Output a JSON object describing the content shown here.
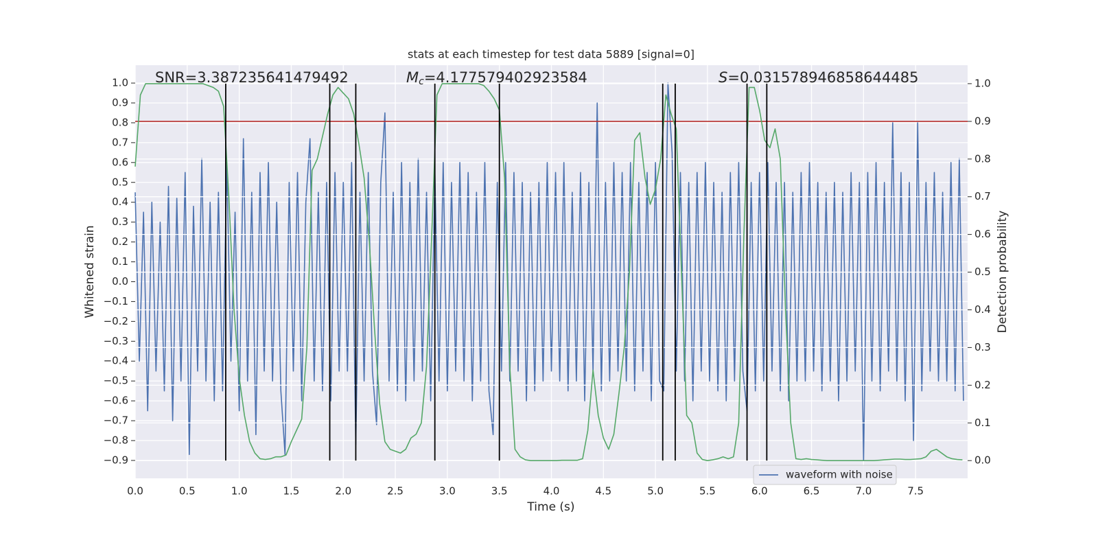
{
  "chart_data": {
    "type": "line",
    "title": "stats at each timestep for test data 5889 [signal=0]",
    "xlabel": "Time (s)",
    "ylabel": "Whitened strain",
    "y2label": "Detection probability",
    "xlim": [
      0,
      8.0
    ],
    "ylim": [
      -0.99,
      1.09
    ],
    "y2lim": [
      -0.047,
      1.049
    ],
    "xticks": [
      {
        "value": 0,
        "label": "0.0"
      },
      {
        "value": 0.5,
        "label": "0.5"
      },
      {
        "value": 1,
        "label": "1.0"
      },
      {
        "value": 1.5,
        "label": "1.5"
      },
      {
        "value": 2,
        "label": "2.0"
      },
      {
        "value": 2.5,
        "label": "2.5"
      },
      {
        "value": 3,
        "label": "3.0"
      },
      {
        "value": 3.5,
        "label": "3.5"
      },
      {
        "value": 4,
        "label": "4.0"
      },
      {
        "value": 4.5,
        "label": "4.5"
      },
      {
        "value": 5,
        "label": "5.0"
      },
      {
        "value": 5.5,
        "label": "5.5"
      },
      {
        "value": 6,
        "label": "6.0"
      },
      {
        "value": 6.5,
        "label": "6.5"
      },
      {
        "value": 7,
        "label": "7.0"
      },
      {
        "value": 7.5,
        "label": "7.5"
      }
    ],
    "yticks": [
      {
        "value": -0.9,
        "label": "−0.9"
      },
      {
        "value": -0.8,
        "label": "−0.8"
      },
      {
        "value": -0.7,
        "label": "−0.7"
      },
      {
        "value": -0.6,
        "label": "−0.6"
      },
      {
        "value": -0.5,
        "label": "−0.5"
      },
      {
        "value": -0.4,
        "label": "−0.4"
      },
      {
        "value": -0.3,
        "label": "−0.3"
      },
      {
        "value": -0.2,
        "label": "−0.2"
      },
      {
        "value": -0.1,
        "label": "−0.1"
      },
      {
        "value": 0,
        "label": "0.0"
      },
      {
        "value": 0.1,
        "label": "0.1"
      },
      {
        "value": 0.2,
        "label": "0.2"
      },
      {
        "value": 0.3,
        "label": "0.3"
      },
      {
        "value": 0.4,
        "label": "0.4"
      },
      {
        "value": 0.5,
        "label": "0.5"
      },
      {
        "value": 0.6,
        "label": "0.6"
      },
      {
        "value": 0.7,
        "label": "0.7"
      },
      {
        "value": 0.8,
        "label": "0.8"
      },
      {
        "value": 0.9,
        "label": "0.9"
      },
      {
        "value": 1,
        "label": "1.0"
      }
    ],
    "y2ticks": [
      {
        "value": 0,
        "label": "0.0"
      },
      {
        "value": 0.1,
        "label": "0.1"
      },
      {
        "value": 0.2,
        "label": "0.2"
      },
      {
        "value": 0.3,
        "label": "0.3"
      },
      {
        "value": 0.4,
        "label": "0.4"
      },
      {
        "value": 0.5,
        "label": "0.5"
      },
      {
        "value": 0.6,
        "label": "0.6"
      },
      {
        "value": 0.7,
        "label": "0.7"
      },
      {
        "value": 0.8,
        "label": "0.8"
      },
      {
        "value": 0.9,
        "label": "0.9"
      },
      {
        "value": 1,
        "label": "1.0"
      }
    ],
    "grid": true,
    "legend": "lower right",
    "annotations": [
      {
        "text": "SNR=3.387235641479492"
      },
      {
        "symbol": "M",
        "subscript": "c",
        "text": "=4.177579402923584"
      },
      {
        "symbol": "S",
        "text": "=0.031578946858644485"
      }
    ],
    "vlines": {
      "x": [
        0.87,
        1.87,
        2.12,
        2.88,
        3.5,
        5.07,
        5.19,
        5.88,
        6.07
      ],
      "ymin": 0,
      "ymax": 1,
      "axis": "y2",
      "color": "#000000"
    },
    "hlines": {
      "y": [
        0.9
      ],
      "axis": "y2",
      "color": "#b8312f"
    },
    "series": [
      {
        "name": "waveform with noise",
        "color": "#4c72b0",
        "x": [
          0,
          0.04,
          0.08,
          0.12,
          0.16,
          0.2,
          0.24,
          0.28,
          0.32,
          0.36,
          0.4,
          0.44,
          0.48,
          0.52,
          0.56,
          0.6,
          0.64,
          0.68,
          0.72,
          0.76,
          0.8,
          0.84,
          0.88,
          0.92,
          0.96,
          1,
          1.04,
          1.08,
          1.12,
          1.16,
          1.2,
          1.24,
          1.28,
          1.32,
          1.36,
          1.4,
          1.44,
          1.48,
          1.52,
          1.56,
          1.6,
          1.64,
          1.68,
          1.72,
          1.76,
          1.8,
          1.84,
          1.88,
          1.92,
          1.96,
          2,
          2.04,
          2.08,
          2.12,
          2.16,
          2.2,
          2.24,
          2.28,
          2.32,
          2.36,
          2.4,
          2.44,
          2.48,
          2.52,
          2.56,
          2.6,
          2.64,
          2.68,
          2.72,
          2.76,
          2.8,
          2.84,
          2.88,
          2.92,
          2.96,
          3,
          3.04,
          3.08,
          3.12,
          3.16,
          3.2,
          3.24,
          3.28,
          3.32,
          3.36,
          3.4,
          3.44,
          3.48,
          3.52,
          3.56,
          3.6,
          3.64,
          3.68,
          3.72,
          3.76,
          3.8,
          3.84,
          3.88,
          3.92,
          3.96,
          4,
          4.04,
          4.08,
          4.12,
          4.16,
          4.2,
          4.24,
          4.28,
          4.32,
          4.36,
          4.4,
          4.44,
          4.48,
          4.52,
          4.56,
          4.6,
          4.64,
          4.68,
          4.72,
          4.76,
          4.8,
          4.84,
          4.88,
          4.92,
          4.96,
          5,
          5.04,
          5.08,
          5.12,
          5.16,
          5.2,
          5.24,
          5.28,
          5.32,
          5.36,
          5.4,
          5.44,
          5.48,
          5.52,
          5.56,
          5.6,
          5.64,
          5.68,
          5.72,
          5.76,
          5.8,
          5.84,
          5.88,
          5.92,
          5.96,
          6,
          6.04,
          6.08,
          6.12,
          6.16,
          6.2,
          6.24,
          6.28,
          6.32,
          6.36,
          6.4,
          6.44,
          6.48,
          6.52,
          6.56,
          6.6,
          6.64,
          6.68,
          6.72,
          6.76,
          6.8,
          6.84,
          6.88,
          6.92,
          6.96,
          7,
          7.04,
          7.08,
          7.12,
          7.16,
          7.2,
          7.24,
          7.28,
          7.32,
          7.36,
          7.4,
          7.44,
          7.48,
          7.52,
          7.56,
          7.6,
          7.64,
          7.68,
          7.72,
          7.76,
          7.8,
          7.84,
          7.88,
          7.92,
          7.96
        ],
        "values": [
          0.45,
          -0.4,
          0.35,
          -0.65,
          0.4,
          -0.45,
          0.3,
          -0.55,
          0.48,
          -0.7,
          0.42,
          -0.5,
          0.55,
          -0.87,
          0.38,
          -0.45,
          0.62,
          -0.5,
          0.4,
          -0.6,
          0.45,
          -0.55,
          0.6,
          -0.4,
          0.35,
          -0.65,
          0.72,
          -0.5,
          0.45,
          -0.77,
          0.55,
          -0.45,
          0.6,
          -0.5,
          0.4,
          -0.55,
          -0.87,
          0.5,
          -0.45,
          0.55,
          -0.6,
          0.4,
          0.72,
          -0.5,
          0.45,
          -0.55,
          0.5,
          -0.6,
          0.55,
          -0.45,
          0.5,
          -0.45,
          0.6,
          -0.82,
          0.45,
          -0.5,
          0.55,
          -0.45,
          -0.72,
          0.5,
          0.85,
          -0.5,
          0.45,
          -0.55,
          0.6,
          -0.6,
          0.5,
          -0.5,
          0.62,
          -0.45,
          0.45,
          -0.6,
          0.55,
          -0.5,
          0.6,
          -0.55,
          0.5,
          -0.45,
          0.6,
          -0.5,
          0.55,
          -0.6,
          0.45,
          -0.5,
          0.6,
          -0.55,
          -0.77,
          0.5,
          -0.45,
          0.6,
          -0.5,
          0.55,
          -0.45,
          0.5,
          -0.6,
          0.45,
          -0.55,
          0.5,
          -0.5,
          0.6,
          -0.45,
          0.55,
          -0.5,
          0.6,
          -0.55,
          0.45,
          -0.5,
          0.55,
          -0.6,
          0.5,
          -0.45,
          0.9,
          -0.55,
          0.5,
          -0.5,
          0.6,
          -0.45,
          0.55,
          -0.5,
          0.6,
          -0.55,
          0.5,
          -0.45,
          0.55,
          -0.6,
          0.6,
          -0.5,
          -0.55,
          1.0,
          0.65,
          -0.45,
          0.55,
          -0.5,
          0.5,
          -0.6,
          0.55,
          -0.45,
          0.6,
          -0.5,
          0.5,
          -0.55,
          0.45,
          -0.6,
          0.55,
          -0.5,
          0.6,
          -0.45,
          -0.65,
          0.5,
          -0.55,
          0.55,
          -0.5,
          0.6,
          -0.45,
          0.5,
          -0.55,
          0.5,
          -0.6,
          0.45,
          -0.5,
          0.55,
          -0.5,
          0.6,
          -0.45,
          0.5,
          -0.55,
          0.45,
          -0.5,
          0.5,
          -0.6,
          0.45,
          -0.5,
          0.55,
          -0.45,
          0.5,
          -0.9,
          0.55,
          -0.5,
          0.6,
          -0.55,
          0.5,
          -0.45,
          0.8,
          -0.5,
          0.55,
          -0.6,
          0.5,
          -0.8,
          0.8,
          -0.55,
          0.5,
          -0.45,
          0.55,
          -0.5,
          0.45,
          -0.5,
          0.6,
          -0.55,
          0.62,
          -0.6
        ]
      },
      {
        "color": "#55a868",
        "axis": "y2",
        "x": [
          0,
          0.05,
          0.1,
          0.15,
          0.2,
          0.25,
          0.3,
          0.35,
          0.4,
          0.45,
          0.5,
          0.55,
          0.6,
          0.65,
          0.7,
          0.75,
          0.8,
          0.85,
          0.9,
          0.95,
          1,
          1.05,
          1.1,
          1.15,
          1.2,
          1.25,
          1.3,
          1.35,
          1.4,
          1.45,
          1.5,
          1.55,
          1.6,
          1.65,
          1.7,
          1.75,
          1.8,
          1.85,
          1.9,
          1.95,
          2,
          2.05,
          2.1,
          2.15,
          2.2,
          2.25,
          2.3,
          2.35,
          2.4,
          2.45,
          2.5,
          2.55,
          2.6,
          2.65,
          2.7,
          2.75,
          2.8,
          2.85,
          2.9,
          2.95,
          3,
          3.05,
          3.1,
          3.15,
          3.2,
          3.25,
          3.3,
          3.35,
          3.4,
          3.45,
          3.5,
          3.55,
          3.6,
          3.65,
          3.7,
          3.75,
          3.8,
          3.85,
          3.9,
          3.95,
          4,
          4.05,
          4.1,
          4.15,
          4.2,
          4.25,
          4.3,
          4.35,
          4.4,
          4.45,
          4.5,
          4.55,
          4.6,
          4.65,
          4.7,
          4.75,
          4.8,
          4.85,
          4.9,
          4.95,
          5,
          5.05,
          5.1,
          5.15,
          5.2,
          5.25,
          5.3,
          5.35,
          5.4,
          5.45,
          5.5,
          5.55,
          5.6,
          5.65,
          5.7,
          5.75,
          5.8,
          5.85,
          5.9,
          5.95,
          6,
          6.05,
          6.1,
          6.15,
          6.2,
          6.25,
          6.3,
          6.35,
          6.4,
          6.45,
          6.5,
          6.55,
          6.6,
          6.65,
          6.7,
          6.75,
          6.8,
          6.85,
          6.9,
          6.95,
          7,
          7.05,
          7.1,
          7.15,
          7.2,
          7.25,
          7.3,
          7.35,
          7.4,
          7.45,
          7.5,
          7.55,
          7.6,
          7.65,
          7.7,
          7.75,
          7.8,
          7.85,
          7.9,
          7.95
        ],
        "values": [
          0.78,
          0.97,
          1.0,
          1.0,
          1.0,
          1.0,
          1.0,
          1.0,
          1.0,
          1.0,
          1.0,
          1.0,
          1.0,
          1.0,
          0.995,
          0.99,
          0.98,
          0.94,
          0.7,
          0.4,
          0.22,
          0.12,
          0.05,
          0.02,
          0.005,
          0.003,
          0.005,
          0.01,
          0.01,
          0.015,
          0.05,
          0.08,
          0.11,
          0.3,
          0.77,
          0.8,
          0.86,
          0.92,
          0.97,
          0.99,
          0.975,
          0.96,
          0.92,
          0.84,
          0.75,
          0.58,
          0.35,
          0.15,
          0.05,
          0.03,
          0.025,
          0.02,
          0.03,
          0.06,
          0.07,
          0.1,
          0.25,
          0.6,
          0.97,
          1.0,
          1.0,
          1.0,
          1.0,
          1.0,
          1.0,
          1.0,
          1.0,
          0.995,
          0.98,
          0.96,
          0.93,
          0.75,
          0.25,
          0.03,
          0.01,
          0.002,
          0.0,
          0.0,
          0.0,
          0.0,
          0.0,
          0.0,
          0.001,
          0.001,
          0.001,
          0.001,
          0.005,
          0.08,
          0.24,
          0.12,
          0.06,
          0.03,
          0.07,
          0.18,
          0.3,
          0.5,
          0.85,
          0.87,
          0.75,
          0.68,
          0.72,
          0.8,
          0.97,
          0.92,
          0.88,
          0.5,
          0.12,
          0.1,
          0.02,
          0.003,
          0.0,
          0.002,
          0.005,
          0.01,
          0.005,
          0.01,
          0.1,
          0.6,
          0.99,
          0.99,
          0.93,
          0.85,
          0.83,
          0.88,
          0.8,
          0.4,
          0.1,
          0.005,
          0.003,
          0.005,
          0.003,
          0.002,
          0.001,
          0.0,
          0.0,
          0.0,
          0.0,
          0.0,
          0.0,
          0.0,
          0.0,
          0.0,
          0.0,
          0.001,
          0.002,
          0.003,
          0.004,
          0.004,
          0.003,
          0.003,
          0.004,
          0.005,
          0.01,
          0.025,
          0.03,
          0.02,
          0.01,
          0.005,
          0.003,
          0.002
        ]
      }
    ]
  }
}
